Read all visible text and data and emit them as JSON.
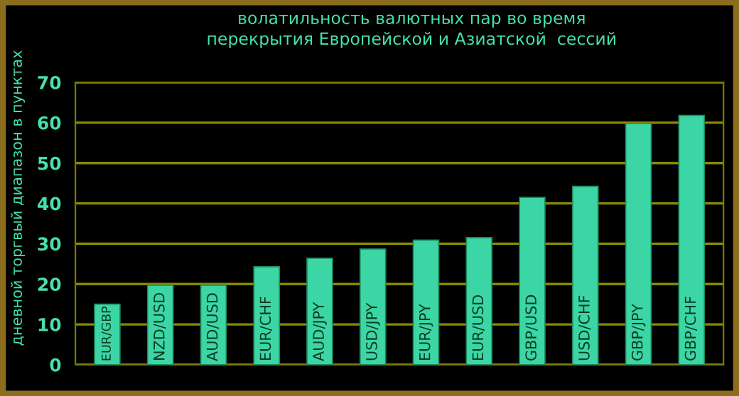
{
  "chart_data": {
    "type": "bar",
    "title": "волатильность валютных пар во время\nперекрытия Европейской и Азиатской  сессий",
    "ylabel": "дневной торгвый диапазон в пунктах",
    "categories": [
      "EUR/GBP",
      "NZD/USD",
      "AUD/USD",
      "EUR/CHF",
      "AUD/JPY",
      "USD/JPY",
      "EUR/JPY",
      "EUR/USD",
      "GBP/USD",
      "USD/CHF",
      "GBP/JPY",
      "GBP/CHF"
    ],
    "values": [
      15,
      19.7,
      19.7,
      24.3,
      26.4,
      28.7,
      30.9,
      31.5,
      41.5,
      44.2,
      59.8,
      61.8
    ],
    "color": "#3cd6a6",
    "ylim": [
      0,
      70
    ],
    "yticks": [
      0,
      10,
      20,
      30,
      40,
      50,
      60,
      70
    ],
    "grid": "y",
    "legend": false
  }
}
